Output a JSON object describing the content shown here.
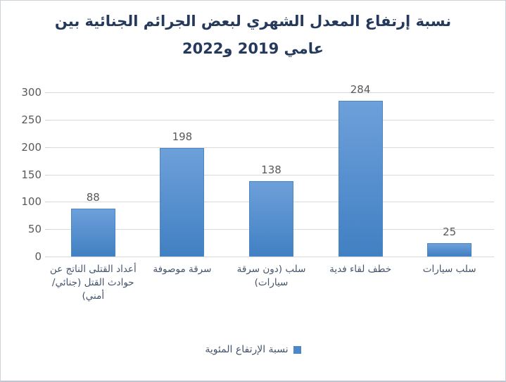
{
  "chart_data": {
    "type": "bar",
    "title": "نسبة إرتفاع المعدل الشهري لبعض الجرائم الجنائية بين عامي 2019 و2022",
    "title_lines": [
      "نسبة إرتفاع المعدل الشهري لبعض الجرائم الجنائية بين",
      "عامي 2019 و2022"
    ],
    "categories": [
      "أعداد القتلى الناتج عن حوادث القتل (جنائي/ أمني)",
      "سرقة موصوفة",
      "سلب (دون سرقة سيارات)",
      "خطف لقاء فدية",
      "سلب سيارات"
    ],
    "values": [
      88,
      198,
      138,
      284,
      25
    ],
    "yticks": [
      0,
      50,
      100,
      150,
      200,
      250,
      300
    ],
    "ylim": [
      0,
      300
    ],
    "xlabel": "",
    "ylabel": "",
    "grid": true,
    "legend": "نسبة الإرتفاع المئوية",
    "legend_position": "bottom-center",
    "colors": {
      "bar_top": "#6da0da",
      "bar_bottom": "#4180c3",
      "bar_border": "#4b86c4",
      "title_text": "#24395b",
      "category_text": "#44546a",
      "value_text": "#595959",
      "ytick_text": "#595959",
      "gridline": "#d9d9d9",
      "legend_swatch": "#4e87c7",
      "background": "#ffffff"
    }
  }
}
